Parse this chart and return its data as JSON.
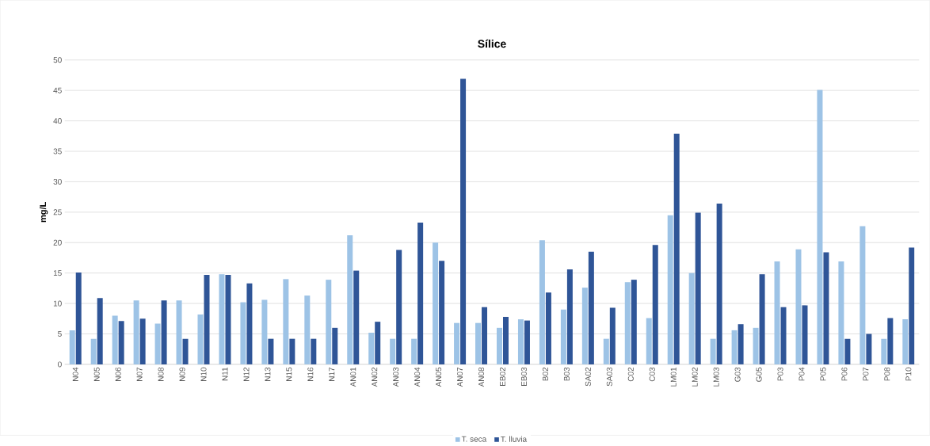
{
  "chart_data": {
    "type": "bar",
    "title": "Sílice",
    "ylabel": "mg/L",
    "categories": [
      "N04",
      "N05",
      "N06",
      "N07",
      "N08",
      "N09",
      "N10",
      "N11",
      "N12",
      "N13",
      "N15",
      "N16",
      "N17",
      "AN01",
      "AN02",
      "AN03",
      "AN04",
      "AN05",
      "AN07",
      "AN08",
      "EB02",
      "EB03",
      "B02",
      "B03",
      "SA02",
      "SA03",
      "C02",
      "C03",
      "LM01",
      "LM02",
      "LM03",
      "G03",
      "G05",
      "P03",
      "P04",
      "P05",
      "P06",
      "P07",
      "P08",
      "P10"
    ],
    "series": [
      {
        "name": "T. seca",
        "color": "#9dc3e6",
        "values": [
          5.6,
          4.2,
          8.0,
          10.5,
          6.7,
          10.5,
          8.2,
          14.8,
          10.2,
          10.6,
          14.0,
          11.3,
          13.9,
          21.2,
          5.2,
          4.2,
          4.2,
          20.0,
          6.8,
          6.8,
          6.0,
          7.4,
          20.4,
          9.0,
          12.6,
          4.2,
          13.5,
          7.6,
          24.5,
          15.0,
          4.2,
          5.6,
          6.0,
          16.9,
          18.9,
          45.1,
          16.9,
          22.7,
          4.2,
          7.4
        ]
      },
      {
        "name": "T. lluvia",
        "color": "#2f5597",
        "values": [
          15.1,
          10.9,
          7.1,
          7.5,
          10.5,
          4.2,
          14.7,
          14.7,
          13.3,
          4.2,
          4.2,
          4.2,
          6.0,
          15.4,
          7.0,
          18.8,
          23.3,
          17.0,
          46.9,
          9.4,
          7.8,
          7.2,
          11.8,
          15.6,
          18.5,
          9.3,
          13.9,
          19.6,
          37.9,
          24.9,
          26.4,
          6.6,
          14.8,
          9.4,
          9.7,
          18.4,
          4.2,
          5.0,
          7.6,
          19.2
        ]
      }
    ],
    "ylim": [
      0,
      50
    ],
    "yticks": [
      0,
      5,
      10,
      15,
      20,
      25,
      30,
      35,
      40,
      45,
      50
    ],
    "grid": "y",
    "legend": "bottom"
  }
}
